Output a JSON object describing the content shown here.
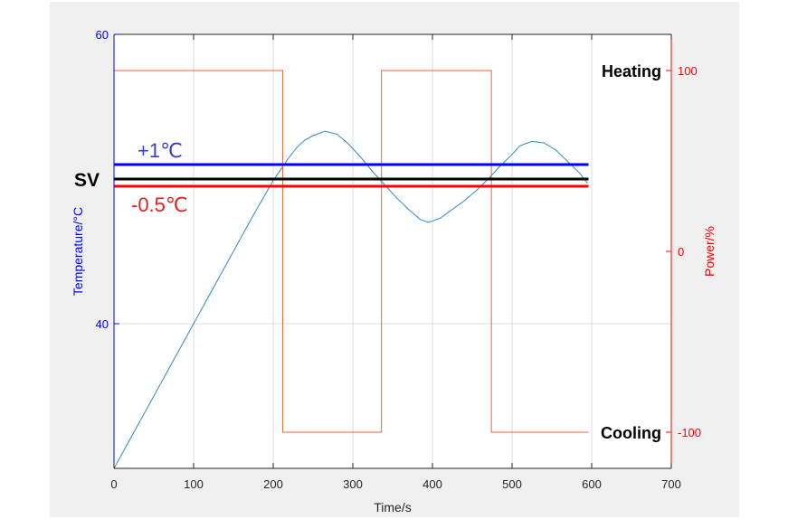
{
  "chart_data": {
    "type": "line",
    "xlabel": "Time/s",
    "ylabel_left": "Temperature/°C",
    "ylabel_right": "Power/%",
    "xlim": [
      0,
      700
    ],
    "ylim_left": [
      30,
      60
    ],
    "ylim_right": [
      -120,
      120
    ],
    "x_ticks": [
      0,
      100,
      200,
      300,
      400,
      500,
      600,
      700
    ],
    "y_ticks_left": [
      40,
      60
    ],
    "y_ticks_right": [
      -100,
      0,
      100
    ],
    "grid": true,
    "colors": {
      "left_axis": "#0000ff",
      "right_axis": "#ff0000",
      "temperature": "#2e8bc7",
      "power": "#e8673a",
      "upper_band": "#0000ff",
      "setpoint": "#000000",
      "lower_band": "#ff0000",
      "upper_label": "#3b3bd6",
      "lower_label": "#e52121",
      "grid": "#dcdcdc"
    },
    "series": [
      {
        "name": "",
        "axis": "left",
        "x": [
          0,
          25,
          50,
          75,
          100,
          125,
          150,
          175,
          200,
          210,
          220,
          230,
          240,
          250,
          265,
          280,
          295,
          310,
          325,
          340,
          355,
          370,
          385,
          395,
          410,
          425,
          440,
          455,
          470,
          485,
          500,
          510,
          525,
          540,
          555,
          570,
          585,
          595
        ],
        "y": [
          30,
          32.5,
          35,
          37.5,
          40,
          42.5,
          45,
          47.5,
          49.9,
          50.7,
          51.5,
          52.2,
          52.7,
          53.0,
          53.3,
          53.1,
          52.4,
          51.5,
          50.5,
          49.6,
          48.7,
          47.9,
          47.2,
          47.0,
          47.3,
          47.9,
          48.5,
          49.2,
          50.0,
          50.9,
          51.7,
          52.3,
          52.6,
          52.5,
          52.0,
          51.2,
          50.4,
          49.7
        ]
      },
      {
        "name": "",
        "axis": "right",
        "x": [
          0,
          212,
          212,
          336,
          336,
          474,
          474,
          596
        ],
        "y": [
          100,
          100,
          -100,
          -100,
          100,
          100,
          -100,
          -100
        ]
      }
    ],
    "reference_lines": [
      {
        "axis": "left",
        "y": 51.0,
        "x_range": [
          0,
          596
        ],
        "label": "+1℃"
      },
      {
        "axis": "left",
        "y": 50.0,
        "x_range": [
          0,
          596
        ],
        "label": "SV"
      },
      {
        "axis": "left",
        "y": 49.5,
        "x_range": [
          0,
          596
        ],
        "label": "-0.5℃"
      }
    ],
    "annotations": [
      {
        "text": "Heating",
        "axis": "right",
        "y": 100
      },
      {
        "text": "Cooling",
        "axis": "right",
        "y": -100
      }
    ]
  }
}
